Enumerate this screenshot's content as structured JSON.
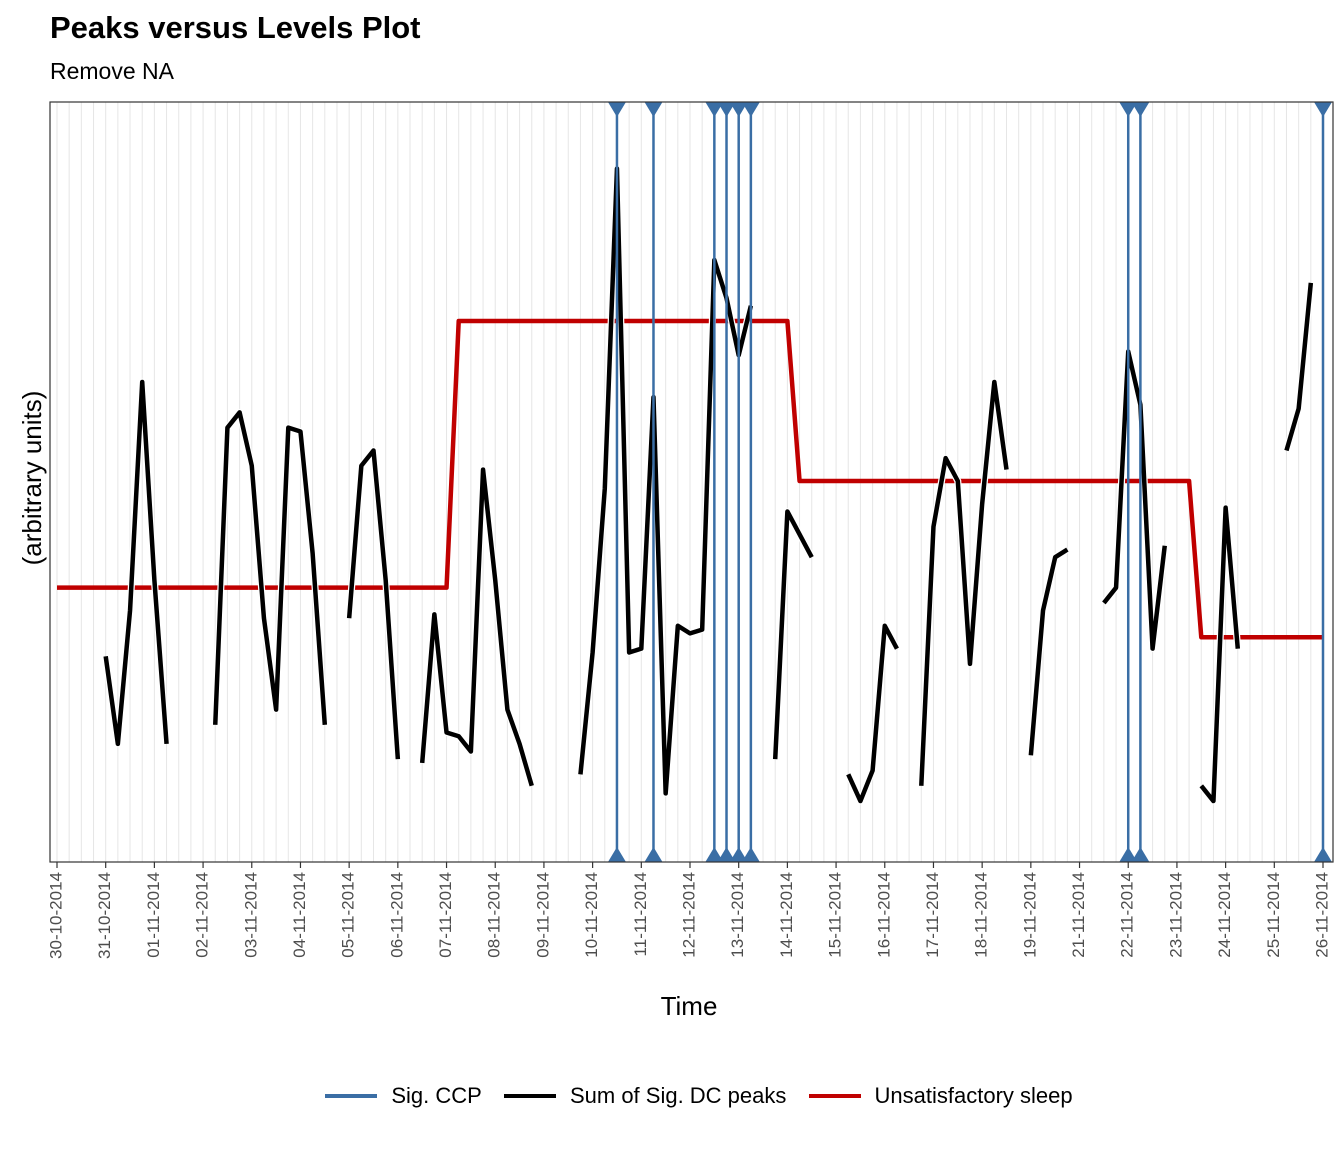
{
  "chart_data": {
    "type": "line",
    "title": "Peaks versus Levels Plot",
    "subtitle": "Remove NA",
    "xlabel": "Time",
    "ylabel": "(arbitrary units)",
    "x_tick_labels": [
      "30-10-2014",
      "31-10-2014",
      "01-11-2014",
      "02-11-2014",
      "03-11-2014",
      "04-11-2014",
      "05-11-2014",
      "06-11-2014",
      "07-11-2014",
      "08-11-2014",
      "09-11-2014",
      "10-11-2014",
      "11-11-2014",
      "12-11-2014",
      "13-11-2014",
      "14-11-2014",
      "15-11-2014",
      "16-11-2014",
      "17-11-2014",
      "18-11-2014",
      "19-11-2014",
      "21-11-2014",
      "22-11-2014",
      "23-11-2014",
      "24-11-2014",
      "25-11-2014",
      "26-11-2014"
    ],
    "x_range": [
      0,
      104
    ],
    "y_range": [
      0,
      100
    ],
    "grid": "vertical minor lines",
    "legend_position": "bottom",
    "series": [
      {
        "name": "Sum of Sig. DC peaks",
        "color": "#000000",
        "segments": [
          [
            [
              4,
              27
            ],
            [
              5,
              15.5
            ],
            [
              6,
              33
            ],
            [
              7,
              63
            ],
            [
              8,
              37
            ],
            [
              9,
              15.5
            ]
          ],
          [
            [
              13,
              18
            ],
            [
              14,
              57
            ],
            [
              15,
              59
            ],
            [
              16,
              52
            ],
            [
              17,
              32
            ],
            [
              18,
              20
            ],
            [
              19,
              57
            ],
            [
              20,
              56.5
            ],
            [
              21,
              40.5
            ],
            [
              22,
              18
            ]
          ],
          [
            [
              24,
              32
            ],
            [
              25,
              52
            ],
            [
              26,
              54
            ],
            [
              27,
              37
            ],
            [
              28,
              13.5
            ]
          ],
          [
            [
              30,
              13
            ],
            [
              31,
              32.5
            ],
            [
              32,
              17
            ],
            [
              33,
              16.5
            ],
            [
              34,
              14.5
            ],
            [
              35,
              51.5
            ],
            [
              36,
              37
            ],
            [
              37,
              20
            ],
            [
              38,
              15.5
            ],
            [
              39,
              10
            ]
          ],
          [
            [
              43,
              11.5
            ],
            [
              44,
              27.5
            ],
            [
              45,
              49
            ],
            [
              46,
              91
            ],
            [
              47,
              27.5
            ],
            [
              48,
              28
            ],
            [
              49,
              61
            ],
            [
              50,
              9
            ],
            [
              51,
              31
            ],
            [
              52,
              30
            ],
            [
              53,
              30.5
            ],
            [
              54,
              79
            ],
            [
              55,
              74
            ],
            [
              56,
              66.5
            ],
            [
              57,
              73
            ]
          ],
          [
            [
              59,
              13.5
            ],
            [
              60,
              46
            ],
            [
              61,
              43
            ],
            [
              62,
              40
            ]
          ],
          [
            [
              65,
              11.5
            ],
            [
              66,
              8
            ],
            [
              67,
              12
            ],
            [
              68,
              31
            ],
            [
              69,
              28
            ]
          ],
          [
            [
              71,
              10
            ],
            [
              72,
              44
            ],
            [
              73,
              53
            ],
            [
              74,
              50
            ],
            [
              75,
              26
            ],
            [
              76,
              47
            ],
            [
              77,
              63
            ],
            [
              78,
              51.5
            ]
          ],
          [
            [
              80,
              14
            ],
            [
              81,
              33
            ],
            [
              82,
              40
            ],
            [
              83,
              41
            ]
          ],
          [
            [
              86,
              34
            ],
            [
              87,
              36
            ],
            [
              88,
              67
            ],
            [
              89,
              60
            ],
            [
              90,
              28
            ],
            [
              91,
              41.5
            ]
          ],
          [
            [
              94,
              10
            ],
            [
              95,
              8
            ],
            [
              96,
              46.5
            ],
            [
              97,
              28
            ]
          ],
          [
            [
              101,
              54
            ],
            [
              102,
              59.5
            ],
            [
              103,
              76
            ]
          ]
        ]
      },
      {
        "name": "Unsatisfactory sleep",
        "color": "#c00000",
        "points": [
          [
            0,
            36
          ],
          [
            32,
            36
          ],
          [
            33,
            71
          ],
          [
            60,
            71
          ],
          [
            61,
            50
          ],
          [
            93,
            50
          ],
          [
            94,
            29.5
          ],
          [
            104,
            29.5
          ]
        ]
      },
      {
        "name": "Sig. CCP",
        "color": "#3a6ea5",
        "x_positions": [
          46,
          49,
          54,
          55,
          56,
          57,
          88,
          89,
          104
        ]
      }
    ]
  }
}
